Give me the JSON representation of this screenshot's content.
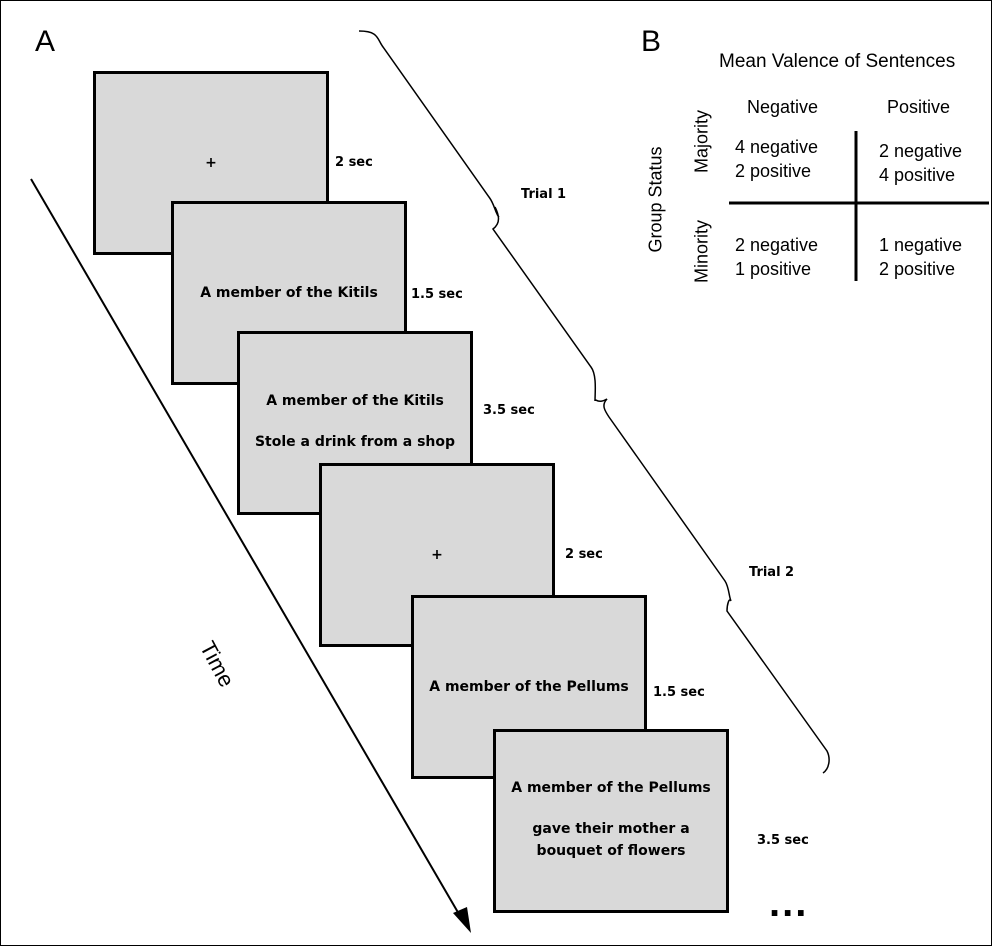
{
  "panel_a": {
    "label": "A",
    "time_label": "Time",
    "ellipsis": "...",
    "trials": [
      "Trial 1",
      "Trial 2"
    ],
    "screens": [
      {
        "line1": "+",
        "line2": "",
        "duration": "2 sec"
      },
      {
        "line1": "A member of the Kitils",
        "line2": "",
        "duration": "1.5 sec"
      },
      {
        "line1": "A member of the Kitils",
        "line2": "Stole a drink from a shop",
        "duration": "3.5 sec"
      },
      {
        "line1": "+",
        "line2": "",
        "duration": "2 sec"
      },
      {
        "line1": "A member of the Pellums",
        "line2": "",
        "duration": "1.5 sec"
      },
      {
        "line1": "A member of the Pellums",
        "line2": "gave their mother a bouquet of flowers",
        "duration": "3.5 sec"
      }
    ]
  },
  "panel_b": {
    "label": "B",
    "title": "Mean Valence of Sentences",
    "col_headers": [
      "Negative",
      "Positive"
    ],
    "row_axis_label": "Group Status",
    "row_headers": [
      "Majority",
      "Minority"
    ],
    "cells": [
      [
        "4 negative",
        "2 positive",
        "2 negative",
        "4 positive"
      ],
      [
        "2 negative",
        "1 positive",
        "1 negative",
        "2 positive"
      ]
    ]
  }
}
